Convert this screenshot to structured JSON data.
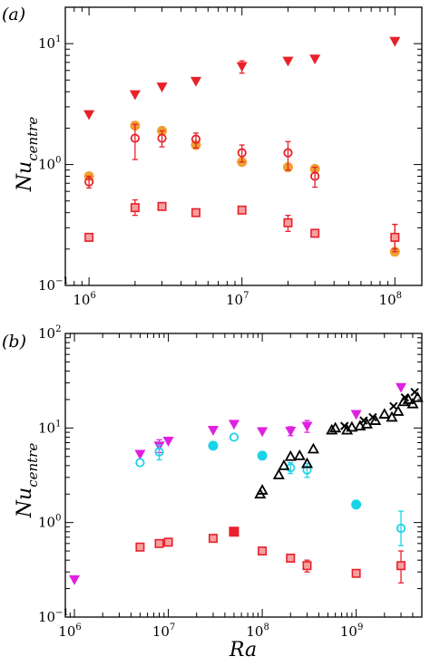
{
  "figure": {
    "x_axis_label": "Ra",
    "y_axis_label_main": "Nu",
    "y_axis_label_sub": "centre"
  },
  "chart_data": [
    {
      "panel_label": "(a)",
      "type": "scatter",
      "xscale": "log",
      "yscale": "log",
      "xlim": [
        700000,
        150000000
      ],
      "ylim": [
        0.1,
        20
      ],
      "x_ticks": [
        {
          "base": "10",
          "exp": "6"
        },
        {
          "base": "10",
          "exp": "7"
        },
        {
          "base": "10",
          "exp": "8"
        }
      ],
      "y_ticks": [
        {
          "base": "10",
          "exp": "−1"
        },
        {
          "base": "10",
          "exp": "0"
        },
        {
          "base": "10",
          "exp": "1"
        }
      ],
      "series": [
        {
          "marker": "triangle-down",
          "color": "#e8212b",
          "fill": "#e8212b",
          "x": [
            1000000,
            2000000,
            3000000,
            5000000,
            10000000,
            20000000,
            30000000,
            100000000
          ],
          "y": [
            2.6,
            3.8,
            4.4,
            4.9,
            6.5,
            7.2,
            7.5,
            10.5
          ],
          "err_low": [
            0,
            0,
            0,
            0,
            0.8,
            0,
            0,
            0
          ],
          "err_high": [
            0,
            0,
            0,
            0,
            0.7,
            0,
            0,
            0
          ]
        },
        {
          "marker": "circle",
          "color": "#f0a030",
          "fill": "#f0a030",
          "x": [
            1000000,
            2000000,
            3000000,
            5000000,
            10000000,
            20000000,
            30000000,
            100000000
          ],
          "y": [
            0.8,
            2.1,
            1.9,
            1.45,
            1.05,
            0.95,
            0.92,
            0.19
          ],
          "err_low": [
            0,
            0,
            0,
            0,
            0,
            0,
            0,
            0
          ],
          "err_high": [
            0,
            0,
            0,
            0,
            0,
            0,
            0,
            0
          ]
        },
        {
          "marker": "circle-open",
          "color": "#e8212b",
          "fill": "none",
          "x": [
            1000000,
            2000000,
            3000000,
            5000000,
            10000000,
            20000000,
            30000000,
            100000000
          ],
          "y": [
            0.72,
            1.65,
            1.65,
            1.62,
            1.25,
            1.25,
            0.8,
            0.25
          ],
          "err_low": [
            0.08,
            0.55,
            0.25,
            0.25,
            0.2,
            0.35,
            0.15,
            0.06
          ],
          "err_high": [
            0.08,
            0.5,
            0.25,
            0.2,
            0.2,
            0.3,
            0.15,
            0.07
          ]
        },
        {
          "marker": "square-open",
          "color": "#e8212b",
          "fill": "#f6a0a0",
          "x": [
            1000000,
            2000000,
            3000000,
            5000000,
            10000000,
            20000000,
            30000000,
            100000000
          ],
          "y": [
            0.25,
            0.44,
            0.45,
            0.4,
            0.42,
            0.33,
            0.27,
            0.25
          ],
          "err_low": [
            0,
            0.06,
            0,
            0,
            0,
            0.05,
            0,
            0.05
          ],
          "err_high": [
            0,
            0.07,
            0,
            0,
            0,
            0.05,
            0,
            0.07
          ]
        }
      ]
    },
    {
      "panel_label": "(b)",
      "type": "scatter",
      "xscale": "log",
      "yscale": "log",
      "xlim": [
        800000,
        5000000000
      ],
      "ylim": [
        0.1,
        100
      ],
      "x_ticks": [
        {
          "base": "10",
          "exp": "6"
        },
        {
          "base": "10",
          "exp": "7"
        },
        {
          "base": "10",
          "exp": "8"
        },
        {
          "base": "10",
          "exp": "9"
        }
      ],
      "y_ticks": [
        {
          "base": "10",
          "exp": "−1"
        },
        {
          "base": "10",
          "exp": "0"
        },
        {
          "base": "10",
          "exp": "1"
        },
        {
          "base": "10",
          "exp": "2"
        }
      ],
      "series": [
        {
          "marker": "triangle-down",
          "color": "#e020e0",
          "fill": "#e020e0",
          "x": [
            1000000,
            5000000,
            8000000,
            10000000,
            30000000,
            50000000,
            100000000,
            200000000,
            300000000,
            1000000000,
            3000000000
          ],
          "y": [
            0.25,
            5.3,
            6.5,
            7.3,
            9.5,
            11,
            9.2,
            9.3,
            10.5,
            14,
            27
          ],
          "err_low": [
            0,
            0,
            1.0,
            0,
            0,
            0,
            0,
            1.0,
            1.5,
            0,
            0
          ],
          "err_high": [
            0,
            0,
            1.0,
            0,
            0,
            0,
            0,
            1.0,
            1.5,
            0,
            0
          ]
        },
        {
          "marker": "circle-open",
          "color": "#1bd3e8",
          "fill": "none",
          "x": [
            5000000,
            8000000,
            50000000,
            200000000,
            300000000,
            3000000000
          ],
          "y": [
            4.3,
            5.6,
            8.0,
            3.8,
            3.6,
            0.87
          ],
          "err_low": [
            0,
            1.0,
            0,
            0.5,
            0.6,
            0.3
          ],
          "err_high": [
            0,
            1.0,
            0,
            0.5,
            0.6,
            0.45
          ]
        },
        {
          "marker": "circle",
          "color": "#1bd3e8",
          "fill": "#1bd3e8",
          "x": [
            30000000,
            100000000,
            1000000000
          ],
          "y": [
            6.5,
            5.1,
            1.55
          ],
          "err_low": [
            0,
            0,
            0
          ],
          "err_high": [
            0,
            0,
            0
          ]
        },
        {
          "marker": "triangle-up-open",
          "color": "#000000",
          "fill": "none",
          "x": [
            95000000,
            100000000,
            150000000,
            170000000,
            200000000,
            250000000,
            300000000,
            350000000,
            550000000,
            600000000,
            800000000,
            900000000,
            1100000000,
            1300000000,
            1600000000,
            2000000000,
            2400000000,
            2800000000,
            3200000000,
            3600000000,
            4000000000,
            4500000000
          ],
          "y": [
            2.0,
            2.2,
            3.2,
            4.0,
            5.0,
            5.1,
            4.2,
            6.0,
            9.5,
            10.0,
            9.5,
            10.2,
            10.5,
            11.0,
            12.0,
            14.0,
            13.0,
            15.0,
            19.0,
            20.0,
            18.0,
            21.0
          ],
          "err_low": [
            0,
            0,
            0,
            0,
            0,
            0,
            0,
            0,
            0,
            0,
            0,
            0,
            0,
            0,
            0,
            0,
            0,
            0,
            0,
            0,
            0,
            0
          ],
          "err_high": [
            0,
            0,
            0,
            0,
            0,
            0,
            0,
            0,
            0,
            0,
            0,
            0,
            0,
            0,
            0,
            0,
            0,
            0,
            0,
            0,
            0,
            0
          ]
        },
        {
          "marker": "cross",
          "color": "#000000",
          "fill": "none",
          "x": [
            750000000,
            1200000000,
            1500000000,
            2500000000,
            3300000000,
            4200000000
          ],
          "y": [
            10.5,
            12.0,
            13.0,
            17.0,
            21.0,
            24.0
          ],
          "err_low": [
            0,
            0,
            0,
            0,
            0,
            0
          ],
          "err_high": [
            0,
            0,
            0,
            0,
            0,
            0
          ]
        },
        {
          "marker": "square-open",
          "color": "#e8212b",
          "fill": "#f6a0a0",
          "x": [
            5000000,
            8000000,
            10000000,
            30000000,
            50000000,
            100000000,
            200000000,
            300000000,
            1000000000,
            3000000000
          ],
          "y": [
            0.55,
            0.6,
            0.62,
            0.68,
            0.8,
            0.5,
            0.42,
            0.35,
            0.29,
            0.35
          ],
          "err_low": [
            0,
            0,
            0,
            0,
            0,
            0,
            0,
            0.05,
            0,
            0.12
          ],
          "err_high": [
            0,
            0,
            0,
            0,
            0,
            0,
            0,
            0.05,
            0,
            0.15
          ]
        },
        {
          "marker": "square",
          "color": "#e8212b",
          "fill": "#e8212b",
          "x": [
            50000000
          ],
          "y": [
            0.8
          ],
          "err_low": [
            0
          ],
          "err_high": [
            0
          ]
        }
      ]
    }
  ]
}
